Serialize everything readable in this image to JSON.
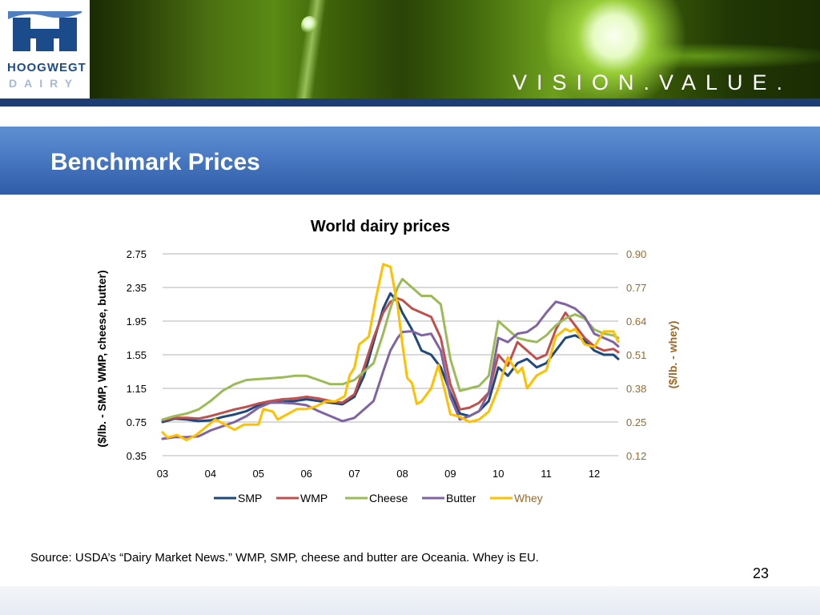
{
  "brand": {
    "name": "HOOGWEGT",
    "sub": "DAIRY",
    "tagline": "VISION.VALUE."
  },
  "slide": {
    "title": "Benchmark Prices",
    "source": "Source: USDA’s “Dairy Market News.” WMP, SMP, cheese and butter are Oceania. Whey is EU.",
    "page_number": "23"
  },
  "colors": {
    "banner": "#1e3d75",
    "title_bar": "#4979c2",
    "SMP": "#1f497d",
    "WMP": "#c0504d",
    "Cheese": "#9bbb59",
    "Butter": "#8064a2",
    "Whey": "#ffc000",
    "right_axis": "#9a6a2a"
  },
  "chart_data": {
    "type": "line",
    "title": "World dairy prices",
    "ylabel": "($/lb. - SMP, WMP, cheese, butter)",
    "y2label": "($/lb. - whey)",
    "ylim": [
      0.35,
      2.75
    ],
    "y2lim": [
      0.12,
      0.9
    ],
    "yticks": [
      "2.75",
      "2.35",
      "1.95",
      "1.55",
      "1.15",
      "0.75",
      "0.35"
    ],
    "y2ticks": [
      "0.90",
      "0.77",
      "0.64",
      "0.51",
      "0.38",
      "0.25",
      "0.12"
    ],
    "xticks": [
      "03",
      "04",
      "05",
      "06",
      "07",
      "08",
      "09",
      "10",
      "11",
      "12"
    ],
    "xlim": [
      2003.0,
      2012.5
    ],
    "grid": true,
    "legend": "bottom",
    "series": [
      {
        "name": "SMP",
        "axis": "left",
        "points": [
          [
            2003.0,
            0.75
          ],
          [
            2003.25,
            0.79
          ],
          [
            2003.5,
            0.78
          ],
          [
            2003.75,
            0.76
          ],
          [
            2004.0,
            0.77
          ],
          [
            2004.25,
            0.81
          ],
          [
            2004.5,
            0.84
          ],
          [
            2004.75,
            0.88
          ],
          [
            2005.0,
            0.95
          ],
          [
            2005.25,
            0.98
          ],
          [
            2005.5,
            0.99
          ],
          [
            2005.75,
            1.0
          ],
          [
            2006.0,
            1.02
          ],
          [
            2006.25,
            1.0
          ],
          [
            2006.5,
            0.98
          ],
          [
            2006.75,
            0.96
          ],
          [
            2007.0,
            1.05
          ],
          [
            2007.2,
            1.3
          ],
          [
            2007.4,
            1.7
          ],
          [
            2007.6,
            2.1
          ],
          [
            2007.75,
            2.28
          ],
          [
            2007.9,
            2.18
          ],
          [
            2008.0,
            2.05
          ],
          [
            2008.2,
            1.85
          ],
          [
            2008.4,
            1.6
          ],
          [
            2008.6,
            1.55
          ],
          [
            2008.8,
            1.4
          ],
          [
            2009.0,
            1.1
          ],
          [
            2009.2,
            0.85
          ],
          [
            2009.4,
            0.82
          ],
          [
            2009.6,
            0.88
          ],
          [
            2009.8,
            1.0
          ],
          [
            2010.0,
            1.4
          ],
          [
            2010.2,
            1.3
          ],
          [
            2010.4,
            1.45
          ],
          [
            2010.6,
            1.5
          ],
          [
            2010.8,
            1.4
          ],
          [
            2011.0,
            1.45
          ],
          [
            2011.2,
            1.6
          ],
          [
            2011.4,
            1.75
          ],
          [
            2011.6,
            1.78
          ],
          [
            2011.8,
            1.72
          ],
          [
            2012.0,
            1.6
          ],
          [
            2012.2,
            1.55
          ],
          [
            2012.4,
            1.55
          ],
          [
            2012.5,
            1.5
          ]
        ]
      },
      {
        "name": "WMP",
        "axis": "left",
        "points": [
          [
            2003.0,
            0.77
          ],
          [
            2003.25,
            0.8
          ],
          [
            2003.5,
            0.8
          ],
          [
            2003.75,
            0.79
          ],
          [
            2004.0,
            0.82
          ],
          [
            2004.25,
            0.86
          ],
          [
            2004.5,
            0.9
          ],
          [
            2004.75,
            0.93
          ],
          [
            2005.0,
            0.97
          ],
          [
            2005.25,
            1.0
          ],
          [
            2005.5,
            1.02
          ],
          [
            2005.75,
            1.03
          ],
          [
            2006.0,
            1.05
          ],
          [
            2006.25,
            1.03
          ],
          [
            2006.5,
            1.0
          ],
          [
            2006.75,
            0.98
          ],
          [
            2007.0,
            1.08
          ],
          [
            2007.2,
            1.4
          ],
          [
            2007.4,
            1.75
          ],
          [
            2007.6,
            2.05
          ],
          [
            2007.75,
            2.18
          ],
          [
            2007.9,
            2.22
          ],
          [
            2008.0,
            2.2
          ],
          [
            2008.2,
            2.1
          ],
          [
            2008.4,
            2.05
          ],
          [
            2008.6,
            2.0
          ],
          [
            2008.8,
            1.75
          ],
          [
            2009.0,
            1.2
          ],
          [
            2009.2,
            0.9
          ],
          [
            2009.4,
            0.92
          ],
          [
            2009.6,
            0.98
          ],
          [
            2009.8,
            1.1
          ],
          [
            2010.0,
            1.55
          ],
          [
            2010.2,
            1.42
          ],
          [
            2010.4,
            1.7
          ],
          [
            2010.6,
            1.6
          ],
          [
            2010.8,
            1.5
          ],
          [
            2011.0,
            1.55
          ],
          [
            2011.2,
            1.85
          ],
          [
            2011.4,
            2.05
          ],
          [
            2011.6,
            1.9
          ],
          [
            2011.8,
            1.75
          ],
          [
            2012.0,
            1.65
          ],
          [
            2012.2,
            1.6
          ],
          [
            2012.4,
            1.62
          ],
          [
            2012.5,
            1.58
          ]
        ]
      },
      {
        "name": "Cheese",
        "axis": "left",
        "points": [
          [
            2003.0,
            0.78
          ],
          [
            2003.25,
            0.82
          ],
          [
            2003.5,
            0.85
          ],
          [
            2003.75,
            0.9
          ],
          [
            2004.0,
            1.0
          ],
          [
            2004.25,
            1.12
          ],
          [
            2004.5,
            1.2
          ],
          [
            2004.75,
            1.25
          ],
          [
            2005.0,
            1.26
          ],
          [
            2005.25,
            1.27
          ],
          [
            2005.5,
            1.28
          ],
          [
            2005.75,
            1.3
          ],
          [
            2006.0,
            1.3
          ],
          [
            2006.25,
            1.25
          ],
          [
            2006.5,
            1.2
          ],
          [
            2006.75,
            1.2
          ],
          [
            2007.0,
            1.25
          ],
          [
            2007.2,
            1.35
          ],
          [
            2007.4,
            1.45
          ],
          [
            2007.6,
            1.8
          ],
          [
            2007.75,
            2.1
          ],
          [
            2007.9,
            2.35
          ],
          [
            2008.0,
            2.45
          ],
          [
            2008.2,
            2.35
          ],
          [
            2008.4,
            2.25
          ],
          [
            2008.6,
            2.25
          ],
          [
            2008.8,
            2.15
          ],
          [
            2009.0,
            1.5
          ],
          [
            2009.2,
            1.12
          ],
          [
            2009.4,
            1.15
          ],
          [
            2009.6,
            1.18
          ],
          [
            2009.8,
            1.3
          ],
          [
            2010.0,
            1.95
          ],
          [
            2010.2,
            1.85
          ],
          [
            2010.4,
            1.75
          ],
          [
            2010.6,
            1.72
          ],
          [
            2010.8,
            1.7
          ],
          [
            2011.0,
            1.78
          ],
          [
            2011.2,
            1.9
          ],
          [
            2011.4,
            1.98
          ],
          [
            2011.6,
            2.03
          ],
          [
            2011.8,
            1.98
          ],
          [
            2012.0,
            1.85
          ],
          [
            2012.2,
            1.8
          ],
          [
            2012.4,
            1.78
          ],
          [
            2012.5,
            1.75
          ]
        ]
      },
      {
        "name": "Butter",
        "axis": "left",
        "points": [
          [
            2003.0,
            0.55
          ],
          [
            2003.25,
            0.57
          ],
          [
            2003.5,
            0.57
          ],
          [
            2003.75,
            0.58
          ],
          [
            2004.0,
            0.65
          ],
          [
            2004.25,
            0.7
          ],
          [
            2004.5,
            0.75
          ],
          [
            2004.75,
            0.82
          ],
          [
            2005.0,
            0.92
          ],
          [
            2005.25,
            0.98
          ],
          [
            2005.5,
            0.98
          ],
          [
            2005.75,
            0.97
          ],
          [
            2006.0,
            0.95
          ],
          [
            2006.25,
            0.88
          ],
          [
            2006.5,
            0.82
          ],
          [
            2006.75,
            0.76
          ],
          [
            2007.0,
            0.8
          ],
          [
            2007.2,
            0.9
          ],
          [
            2007.4,
            1.0
          ],
          [
            2007.6,
            1.35
          ],
          [
            2007.75,
            1.6
          ],
          [
            2007.9,
            1.75
          ],
          [
            2008.0,
            1.82
          ],
          [
            2008.2,
            1.83
          ],
          [
            2008.4,
            1.78
          ],
          [
            2008.6,
            1.8
          ],
          [
            2008.8,
            1.6
          ],
          [
            2009.0,
            1.05
          ],
          [
            2009.2,
            0.78
          ],
          [
            2009.4,
            0.82
          ],
          [
            2009.6,
            0.88
          ],
          [
            2009.8,
            1.1
          ],
          [
            2010.0,
            1.75
          ],
          [
            2010.2,
            1.7
          ],
          [
            2010.4,
            1.8
          ],
          [
            2010.6,
            1.82
          ],
          [
            2010.8,
            1.9
          ],
          [
            2011.0,
            2.05
          ],
          [
            2011.2,
            2.18
          ],
          [
            2011.4,
            2.15
          ],
          [
            2011.6,
            2.1
          ],
          [
            2011.8,
            2.0
          ],
          [
            2012.0,
            1.8
          ],
          [
            2012.2,
            1.75
          ],
          [
            2012.4,
            1.7
          ],
          [
            2012.5,
            1.65
          ]
        ]
      },
      {
        "name": "Whey",
        "axis": "right",
        "points": [
          [
            2003.0,
            0.21
          ],
          [
            2003.1,
            0.19
          ],
          [
            2003.3,
            0.2
          ],
          [
            2003.5,
            0.18
          ],
          [
            2003.7,
            0.2
          ],
          [
            2003.9,
            0.23
          ],
          [
            2004.1,
            0.26
          ],
          [
            2004.3,
            0.24
          ],
          [
            2004.5,
            0.22
          ],
          [
            2004.7,
            0.24
          ],
          [
            2005.0,
            0.24
          ],
          [
            2005.1,
            0.3
          ],
          [
            2005.3,
            0.29
          ],
          [
            2005.4,
            0.26
          ],
          [
            2005.6,
            0.28
          ],
          [
            2005.8,
            0.3
          ],
          [
            2006.0,
            0.3
          ],
          [
            2006.2,
            0.31
          ],
          [
            2006.4,
            0.33
          ],
          [
            2006.6,
            0.33
          ],
          [
            2006.8,
            0.35
          ],
          [
            2006.9,
            0.43
          ],
          [
            2007.0,
            0.46
          ],
          [
            2007.1,
            0.55
          ],
          [
            2007.3,
            0.58
          ],
          [
            2007.45,
            0.73
          ],
          [
            2007.6,
            0.86
          ],
          [
            2007.75,
            0.85
          ],
          [
            2007.9,
            0.7
          ],
          [
            2008.0,
            0.55
          ],
          [
            2008.1,
            0.42
          ],
          [
            2008.2,
            0.4
          ],
          [
            2008.3,
            0.32
          ],
          [
            2008.4,
            0.33
          ],
          [
            2008.6,
            0.38
          ],
          [
            2008.75,
            0.47
          ],
          [
            2008.9,
            0.36
          ],
          [
            2009.0,
            0.28
          ],
          [
            2009.2,
            0.27
          ],
          [
            2009.4,
            0.25
          ],
          [
            2009.6,
            0.26
          ],
          [
            2009.8,
            0.29
          ],
          [
            2010.0,
            0.38
          ],
          [
            2010.2,
            0.5
          ],
          [
            2010.4,
            0.44
          ],
          [
            2010.5,
            0.46
          ],
          [
            2010.6,
            0.38
          ],
          [
            2010.8,
            0.43
          ],
          [
            2011.0,
            0.45
          ],
          [
            2011.2,
            0.58
          ],
          [
            2011.4,
            0.61
          ],
          [
            2011.5,
            0.6
          ],
          [
            2011.6,
            0.61
          ],
          [
            2011.8,
            0.55
          ],
          [
            2012.0,
            0.54
          ],
          [
            2012.2,
            0.6
          ],
          [
            2012.4,
            0.6
          ],
          [
            2012.5,
            0.56
          ]
        ]
      }
    ]
  }
}
